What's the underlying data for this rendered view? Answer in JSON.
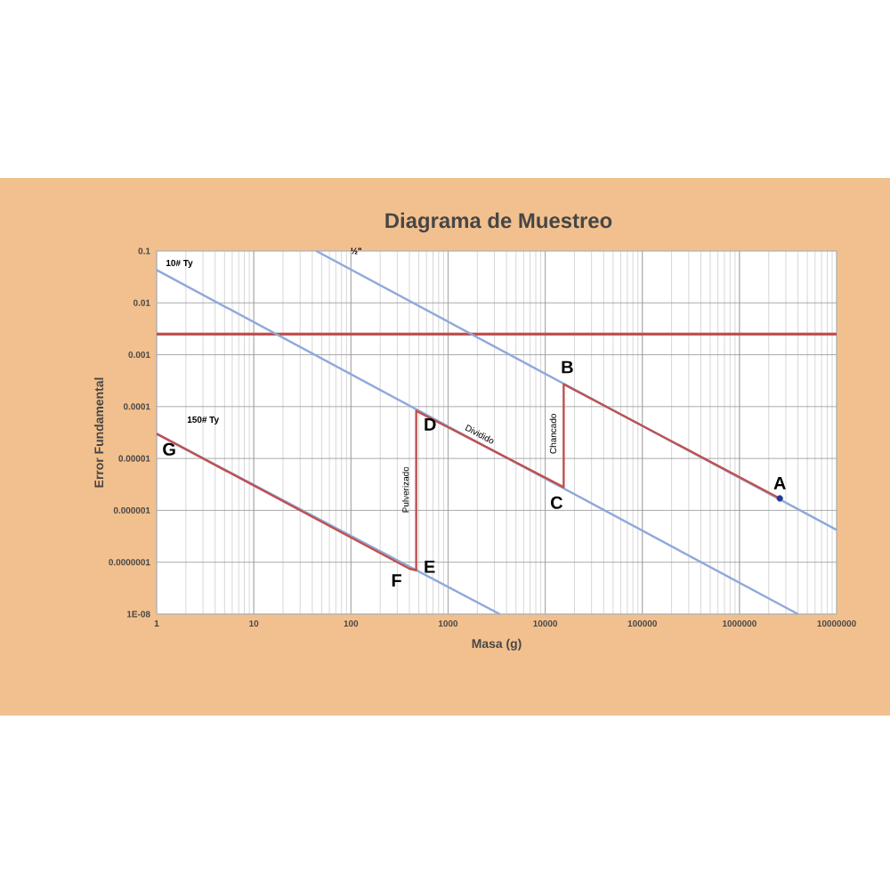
{
  "chart_data": {
    "type": "line",
    "title": "Diagrama de Muestreo",
    "xlabel": "Masa (g)",
    "ylabel": "Error Fundamental",
    "log": "xy",
    "grid": true,
    "marker": "none",
    "xlim": [
      1,
      10000000
    ],
    "ylim": [
      1e-08,
      0.1
    ],
    "xticks": [
      1,
      10,
      100,
      1000,
      10000,
      100000,
      1000000,
      10000000
    ],
    "yticks": [
      {
        "value": 0.1,
        "label": "0.1"
      },
      {
        "value": 0.01,
        "label": "0.01"
      },
      {
        "value": 0.001,
        "label": "0.001"
      },
      {
        "value": 0.0001,
        "label": "0.0001"
      },
      {
        "value": 1e-05,
        "label": "0.00001"
      },
      {
        "value": 1e-06,
        "label": "0.000001"
      },
      {
        "value": 1e-07,
        "label": "0.0000001"
      },
      {
        "value": 1e-08,
        "label": "1E-08"
      }
    ],
    "series": [
      {
        "name": "10# Ty",
        "color": "#8ea9db",
        "x": [
          1,
          4000000
        ],
        "values": [
          0.043,
          1e-08
        ]
      },
      {
        "name": "½\"",
        "color": "#8ea9db",
        "x": [
          44,
          10000000
        ],
        "values": [
          0.1,
          4.2e-07
        ]
      },
      {
        "name": "150# Ty",
        "color": "#8ea9db",
        "x": [
          1,
          3400
        ],
        "values": [
          3e-05,
          1e-08
        ]
      },
      {
        "color": "#c0504d",
        "x": [
          2600000,
          15500,
          15500,
          470,
          470,
          400,
          1
        ],
        "values": [
          1.7e-06,
          0.00027,
          2.8e-06,
          8.3e-05,
          7e-08,
          7.5e-08,
          3e-05
        ]
      },
      {
        "type": "scatter",
        "color": "#1f3a93",
        "x": [
          2600000
        ],
        "values": [
          1.7e-06
        ]
      }
    ],
    "ref_lines": [
      {
        "axis": "y",
        "value": 0.0025,
        "color": "#c0504d"
      }
    ],
    "annotations": [
      {
        "text": "A",
        "x": 2600000,
        "y": 1.7e-06
      },
      {
        "text": "B",
        "x": 15500,
        "y": 0.00027
      },
      {
        "text": "C",
        "x": 15500,
        "y": 2.8e-06
      },
      {
        "text": "D",
        "x": 470,
        "y": 8.3e-05
      },
      {
        "text": "E",
        "x": 470,
        "y": 7e-08
      },
      {
        "text": "F",
        "x": 400,
        "y": 7.5e-08
      },
      {
        "text": "G",
        "x": 1,
        "y": 3e-05
      },
      {
        "text": "Pulverizado",
        "x": 470,
        "y": 2.5e-06
      },
      {
        "text": "Chancado",
        "x": 15500,
        "y": 3e-05
      },
      {
        "text": "Dividido",
        "x": 2000,
        "y": 2.2e-05
      }
    ]
  }
}
